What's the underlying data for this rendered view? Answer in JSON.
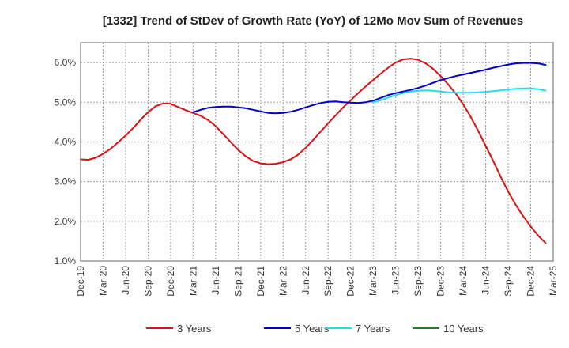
{
  "chart_data": {
    "type": "line",
    "title": "[1332]  Trend of StDev of Growth Rate (YoY) of 12Mo Mov Sum of Revenues",
    "xlabel": "",
    "ylabel": "",
    "ylim": [
      1.0,
      6.5
    ],
    "yticks": [
      1.0,
      2.0,
      3.0,
      4.0,
      5.0,
      6.0
    ],
    "ytick_labels": [
      "1.0%",
      "2.0%",
      "3.0%",
      "4.0%",
      "5.0%",
      "6.0%"
    ],
    "x_tick_labels": [
      "Dec-19",
      "Mar-20",
      "Jun-20",
      "Sep-20",
      "Dec-20",
      "Mar-21",
      "Jun-21",
      "Sep-21",
      "Dec-21",
      "Mar-22",
      "Jun-22",
      "Sep-22",
      "Dec-22",
      "Mar-23",
      "Jun-23",
      "Sep-23",
      "Dec-23",
      "Mar-24",
      "Jun-24",
      "Sep-24",
      "Dec-24",
      "Mar-25"
    ],
    "grid": true,
    "legend_position": "bottom",
    "colors": {
      "3 Years": "#dd1111",
      "5 Years": "#0000cc",
      "7 Years": "#22ddee",
      "10 Years": "#118811"
    },
    "series": [
      {
        "name": "3 Years",
        "color": "#dd1111",
        "points": [
          [
            0,
            3.56
          ],
          [
            1,
            3.55
          ],
          [
            2,
            3.6
          ],
          [
            3,
            3.7
          ],
          [
            4,
            3.83
          ],
          [
            5,
            3.99
          ],
          [
            6,
            4.16
          ],
          [
            7,
            4.35
          ],
          [
            8,
            4.56
          ],
          [
            9,
            4.75
          ],
          [
            10,
            4.9
          ],
          [
            11,
            4.97
          ],
          [
            12,
            4.96
          ],
          [
            13,
            4.88
          ],
          [
            14,
            4.8
          ],
          [
            15,
            4.73
          ],
          [
            16,
            4.66
          ],
          [
            17,
            4.55
          ],
          [
            18,
            4.4
          ],
          [
            19,
            4.2
          ],
          [
            20,
            4.0
          ],
          [
            21,
            3.8
          ],
          [
            22,
            3.64
          ],
          [
            23,
            3.52
          ],
          [
            24,
            3.46
          ],
          [
            25,
            3.44
          ],
          [
            26,
            3.45
          ],
          [
            27,
            3.49
          ],
          [
            28,
            3.56
          ],
          [
            29,
            3.68
          ],
          [
            30,
            3.85
          ],
          [
            31,
            4.05
          ],
          [
            32,
            4.26
          ],
          [
            33,
            4.47
          ],
          [
            34,
            4.67
          ],
          [
            35,
            4.87
          ],
          [
            36,
            5.05
          ],
          [
            37,
            5.23
          ],
          [
            38,
            5.4
          ],
          [
            39,
            5.56
          ],
          [
            40,
            5.72
          ],
          [
            41,
            5.87
          ],
          [
            42,
            6.0
          ],
          [
            43,
            6.08
          ],
          [
            44,
            6.1
          ],
          [
            45,
            6.07
          ],
          [
            46,
            5.98
          ],
          [
            47,
            5.84
          ],
          [
            48,
            5.66
          ],
          [
            49,
            5.45
          ],
          [
            50,
            5.22
          ],
          [
            51,
            4.95
          ],
          [
            52,
            4.63
          ],
          [
            53,
            4.28
          ],
          [
            54,
            3.9
          ],
          [
            55,
            3.52
          ],
          [
            56,
            3.12
          ],
          [
            57,
            2.75
          ],
          [
            58,
            2.42
          ],
          [
            59,
            2.13
          ],
          [
            60,
            1.87
          ],
          [
            61,
            1.64
          ],
          [
            62,
            1.45
          ]
        ]
      },
      {
        "name": "5 Years",
        "color": "#0000cc",
        "points": [
          [
            15,
            4.75
          ],
          [
            16,
            4.81
          ],
          [
            17,
            4.86
          ],
          [
            18,
            4.88
          ],
          [
            19,
            4.89
          ],
          [
            20,
            4.89
          ],
          [
            21,
            4.87
          ],
          [
            22,
            4.85
          ],
          [
            23,
            4.81
          ],
          [
            24,
            4.77
          ],
          [
            25,
            4.73
          ],
          [
            26,
            4.72
          ],
          [
            27,
            4.73
          ],
          [
            28,
            4.76
          ],
          [
            29,
            4.81
          ],
          [
            30,
            4.87
          ],
          [
            31,
            4.93
          ],
          [
            32,
            4.98
          ],
          [
            33,
            5.01
          ],
          [
            34,
            5.02
          ],
          [
            35,
            5.0
          ],
          [
            36,
            4.99
          ],
          [
            37,
            4.98
          ],
          [
            38,
            5.0
          ],
          [
            39,
            5.04
          ],
          [
            40,
            5.11
          ],
          [
            41,
            5.18
          ],
          [
            42,
            5.23
          ],
          [
            43,
            5.27
          ],
          [
            44,
            5.31
          ],
          [
            45,
            5.36
          ],
          [
            46,
            5.42
          ],
          [
            47,
            5.49
          ],
          [
            48,
            5.56
          ],
          [
            49,
            5.61
          ],
          [
            50,
            5.66
          ],
          [
            51,
            5.7
          ],
          [
            52,
            5.74
          ],
          [
            53,
            5.78
          ],
          [
            54,
            5.82
          ],
          [
            55,
            5.87
          ],
          [
            56,
            5.91
          ],
          [
            57,
            5.95
          ],
          [
            58,
            5.98
          ],
          [
            59,
            5.99
          ],
          [
            60,
            5.99
          ],
          [
            61,
            5.98
          ],
          [
            62,
            5.94
          ]
        ]
      },
      {
        "name": "7 Years",
        "color": "#22ddee",
        "points": [
          [
            39,
            5.0
          ],
          [
            40,
            5.05
          ],
          [
            41,
            5.12
          ],
          [
            42,
            5.18
          ],
          [
            43,
            5.23
          ],
          [
            44,
            5.27
          ],
          [
            45,
            5.29
          ],
          [
            46,
            5.3
          ],
          [
            47,
            5.29
          ],
          [
            48,
            5.27
          ],
          [
            49,
            5.25
          ],
          [
            50,
            5.24
          ],
          [
            51,
            5.24
          ],
          [
            52,
            5.24
          ],
          [
            53,
            5.25
          ],
          [
            54,
            5.26
          ],
          [
            55,
            5.28
          ],
          [
            56,
            5.3
          ],
          [
            57,
            5.32
          ],
          [
            58,
            5.34
          ],
          [
            59,
            5.35
          ],
          [
            60,
            5.35
          ],
          [
            61,
            5.33
          ],
          [
            62,
            5.29
          ]
        ]
      },
      {
        "name": "10 Years",
        "color": "#118811",
        "points": []
      }
    ]
  }
}
